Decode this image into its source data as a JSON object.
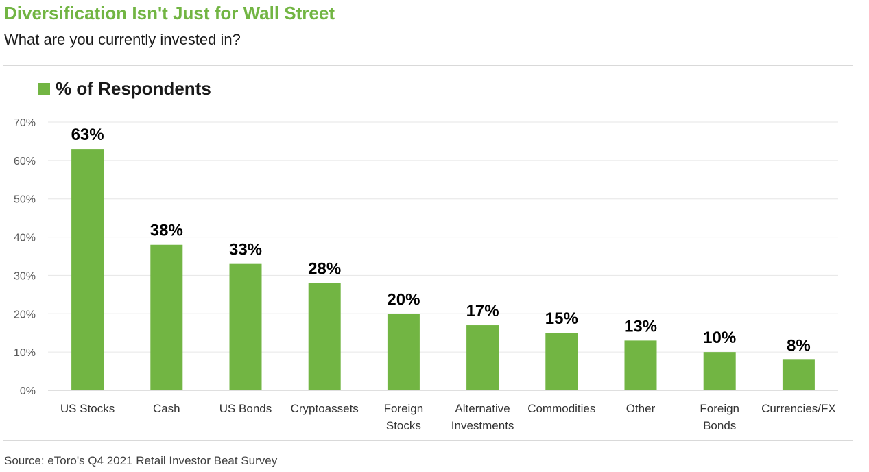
{
  "title": "Diversification Isn't Just for Wall Street",
  "subtitle": "What are you currently invested in?",
  "source": "Source: eToro's Q4 2021 Retail Investor Beat Survey",
  "colors": {
    "accent": "#72b543",
    "grid": "#e6e6e6"
  },
  "chart_data": {
    "type": "bar",
    "categories": [
      "US Stocks",
      "Cash",
      "US Bonds",
      "Cryptoassets",
      "Foreign Stocks",
      "Alternative Investments",
      "Commodities",
      "Other",
      "Foreign Bonds",
      "Currencies/FX"
    ],
    "category_lines": [
      [
        "US Stocks"
      ],
      [
        "Cash"
      ],
      [
        "US Bonds"
      ],
      [
        "Cryptoassets"
      ],
      [
        "Foreign",
        "Stocks"
      ],
      [
        "Alternative",
        "Investments"
      ],
      [
        "Commodities"
      ],
      [
        "Other"
      ],
      [
        "Foreign",
        "Bonds"
      ],
      [
        "Currencies/FX"
      ]
    ],
    "series": [
      {
        "name": "% of Respondents",
        "values": [
          63,
          38,
          33,
          28,
          20,
          17,
          15,
          13,
          10,
          8
        ]
      }
    ],
    "data_labels": [
      "63%",
      "38%",
      "33%",
      "28%",
      "20%",
      "17%",
      "15%",
      "13%",
      "10%",
      "8%"
    ],
    "yticks": [
      "0%",
      "10%",
      "20%",
      "30%",
      "40%",
      "50%",
      "60%",
      "70%"
    ],
    "ylim": [
      0,
      70
    ],
    "grid": true,
    "legend_position": "top-left"
  }
}
